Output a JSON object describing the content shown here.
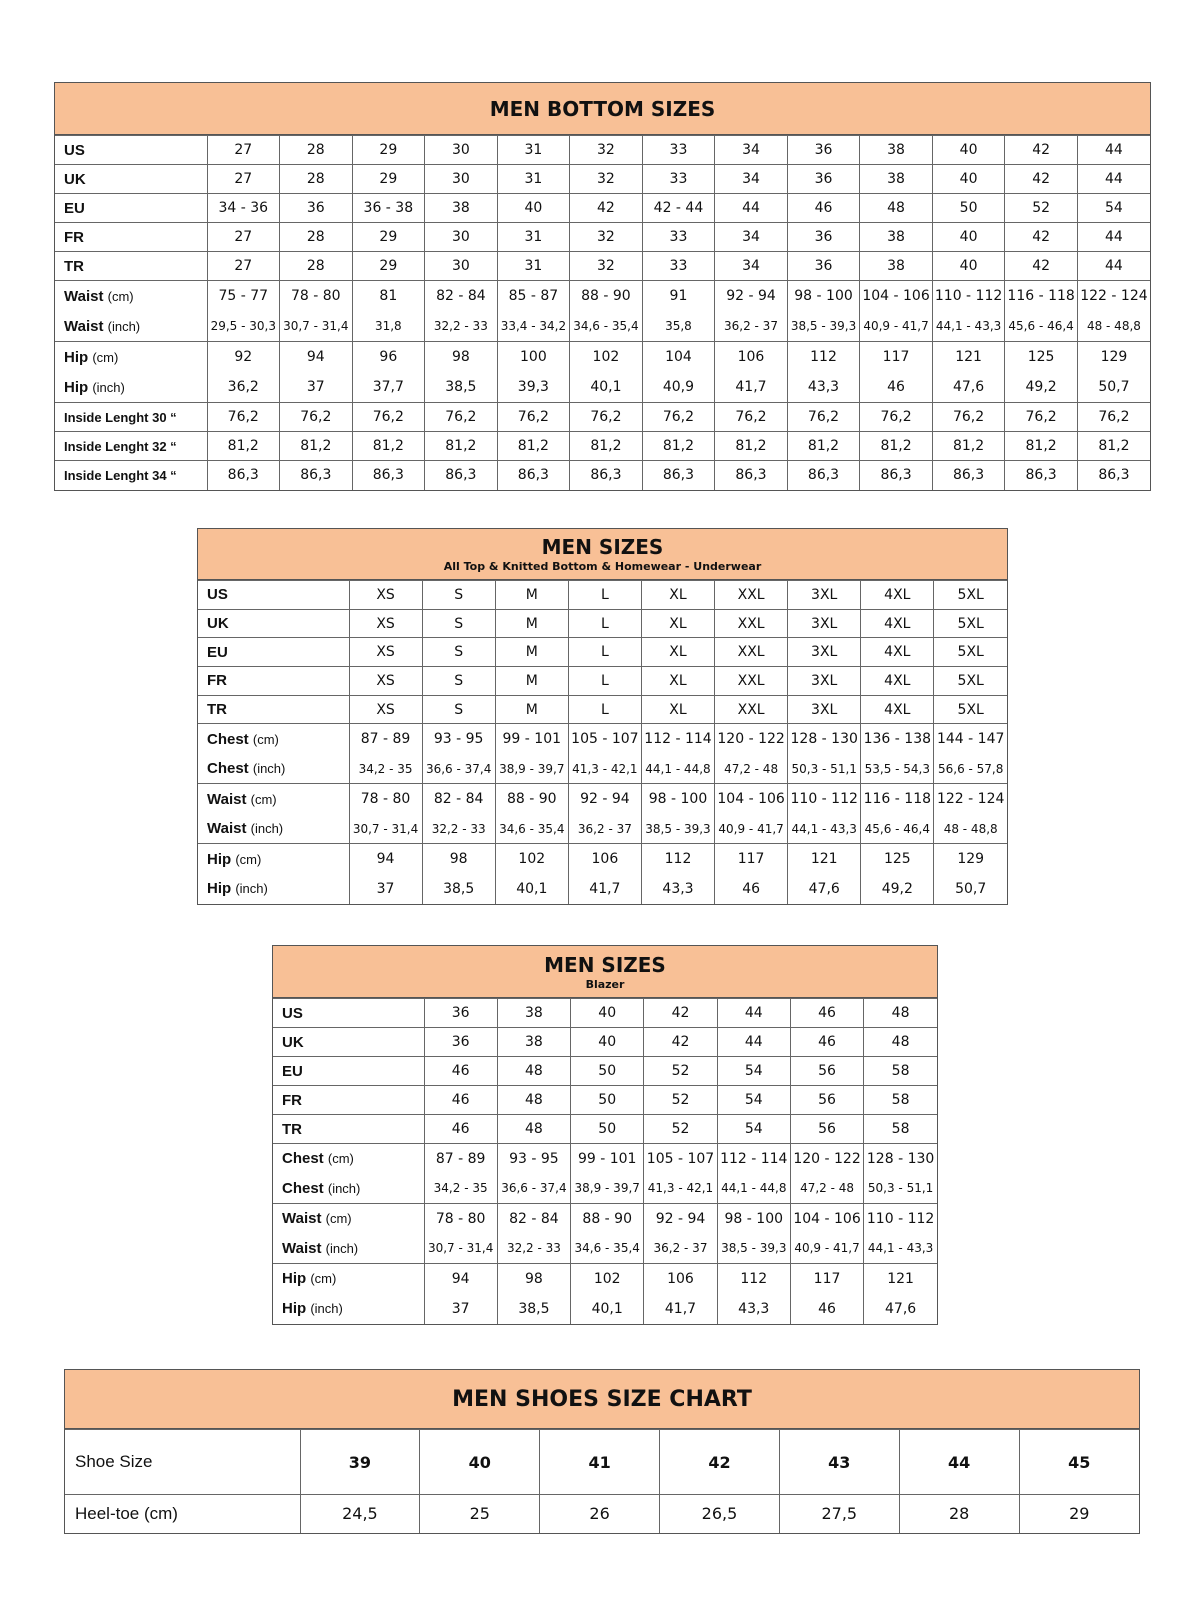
{
  "accent_color": "#f8c096",
  "tables": [
    {
      "id": "men-bottom-sizes",
      "title": "MEN BOTTOM SIZES",
      "subtitle": "",
      "rows": [
        {
          "label": "US",
          "values": [
            "27",
            "28",
            "29",
            "30",
            "31",
            "32",
            "33",
            "34",
            "36",
            "38",
            "40",
            "42",
            "44"
          ]
        },
        {
          "label": "UK",
          "values": [
            "27",
            "28",
            "29",
            "30",
            "31",
            "32",
            "33",
            "34",
            "36",
            "38",
            "40",
            "42",
            "44"
          ]
        },
        {
          "label": "EU",
          "values": [
            "34 - 36",
            "36",
            "36 - 38",
            "38",
            "40",
            "42",
            "42 - 44",
            "44",
            "46",
            "48",
            "50",
            "52",
            "54"
          ]
        },
        {
          "label": "FR",
          "values": [
            "27",
            "28",
            "29",
            "30",
            "31",
            "32",
            "33",
            "34",
            "36",
            "38",
            "40",
            "42",
            "44"
          ]
        },
        {
          "label": "TR",
          "values": [
            "27",
            "28",
            "29",
            "30",
            "31",
            "32",
            "33",
            "34",
            "36",
            "38",
            "40",
            "42",
            "44"
          ]
        },
        {
          "label": "Waist",
          "unit": "(cm)",
          "pair": "top",
          "values": [
            "75 - 77",
            "78 - 80",
            "81",
            "82 - 84",
            "85 - 87",
            "88 - 90",
            "91",
            "92 - 94",
            "98 - 100",
            "104 - 106",
            "110 - 112",
            "116 - 118",
            "122 - 124"
          ]
        },
        {
          "label": "Waist",
          "unit": "(inch)",
          "pair": "bot",
          "small": true,
          "values": [
            "29,5 - 30,3",
            "30,7 - 31,4",
            "31,8",
            "32,2 - 33",
            "33,4  - 34,2",
            "34,6 - 35,4",
            "35,8",
            "36,2 - 37",
            "38,5 - 39,3",
            "40,9 - 41,7",
            "44,1 - 43,3",
            "45,6 - 46,4",
            "48 - 48,8"
          ]
        },
        {
          "label": "Hip",
          "unit": "(cm)",
          "pair": "top",
          "values": [
            "92",
            "94",
            "96",
            "98",
            "100",
            "102",
            "104",
            "106",
            "112",
            "117",
            "121",
            "125",
            "129"
          ]
        },
        {
          "label": "Hip",
          "unit": "(inch)",
          "pair": "bot",
          "values": [
            "36,2",
            "37",
            "37,7",
            "38,5",
            "39,3",
            "40,1",
            "40,9",
            "41,7",
            "43,3",
            "46",
            "47,6",
            "49,2",
            "50,7"
          ]
        },
        {
          "label": "Inside Lenght 30 “",
          "smalllabel": true,
          "group": true,
          "values": [
            "76,2",
            "76,2",
            "76,2",
            "76,2",
            "76,2",
            "76,2",
            "76,2",
            "76,2",
            "76,2",
            "76,2",
            "76,2",
            "76,2",
            "76,2"
          ]
        },
        {
          "label": "Inside Lenght 32 “",
          "smalllabel": true,
          "values": [
            "81,2",
            "81,2",
            "81,2",
            "81,2",
            "81,2",
            "81,2",
            "81,2",
            "81,2",
            "81,2",
            "81,2",
            "81,2",
            "81,2",
            "81,2"
          ]
        },
        {
          "label": "Inside Lenght 34 “",
          "smalllabel": true,
          "values": [
            "86,3",
            "86,3",
            "86,3",
            "86,3",
            "86,3",
            "86,3",
            "86,3",
            "86,3",
            "86,3",
            "86,3",
            "86,3",
            "86,3",
            "86,3"
          ]
        }
      ]
    },
    {
      "id": "men-sizes-top",
      "title": "MEN SIZES",
      "subtitle": "All Top & Knitted Bottom & Homewear - Underwear",
      "rows": [
        {
          "label": "US",
          "values": [
            "XS",
            "S",
            "M",
            "L",
            "XL",
            "XXL",
            "3XL",
            "4XL",
            "5XL"
          ]
        },
        {
          "label": "UK",
          "values": [
            "XS",
            "S",
            "M",
            "L",
            "XL",
            "XXL",
            "3XL",
            "4XL",
            "5XL"
          ]
        },
        {
          "label": "EU",
          "values": [
            "XS",
            "S",
            "M",
            "L",
            "XL",
            "XXL",
            "3XL",
            "4XL",
            "5XL"
          ]
        },
        {
          "label": "FR",
          "values": [
            "XS",
            "S",
            "M",
            "L",
            "XL",
            "XXL",
            "3XL",
            "4XL",
            "5XL"
          ]
        },
        {
          "label": "TR",
          "values": [
            "XS",
            "S",
            "M",
            "L",
            "XL",
            "XXL",
            "3XL",
            "4XL",
            "5XL"
          ]
        },
        {
          "label": "Chest",
          "unit": "(cm)",
          "pair": "top",
          "values": [
            "87 - 89",
            "93 - 95",
            "99 - 101",
            "105 - 107",
            "112 - 114",
            "120 - 122",
            "128 - 130",
            "136 - 138",
            "144 - 147"
          ]
        },
        {
          "label": "Chest",
          "unit": "(inch)",
          "pair": "bot",
          "small": true,
          "values": [
            "34,2 - 35",
            "36,6 - 37,4",
            "38,9 - 39,7",
            "41,3 - 42,1",
            "44,1 - 44,8",
            "47,2 - 48",
            "50,3 - 51,1",
            "53,5 - 54,3",
            "56,6 - 57,8"
          ]
        },
        {
          "label": "Waist",
          "unit": "(cm)",
          "pair": "top",
          "values": [
            "78 - 80",
            "82 - 84",
            "88 - 90",
            "92 - 94",
            "98 - 100",
            "104 - 106",
            "110 - 112",
            "116 - 118",
            "122 - 124"
          ]
        },
        {
          "label": "Waist",
          "unit": "(inch)",
          "pair": "bot",
          "small": true,
          "values": [
            "30,7 - 31,4",
            "32,2 - 33",
            "34,6 - 35,4",
            "36,2 - 37",
            "38,5 - 39,3",
            "40,9 - 41,7",
            "44,1 - 43,3",
            "45,6 - 46,4",
            "48 - 48,8"
          ]
        },
        {
          "label": "Hip",
          "unit": "(cm)",
          "pair": "top",
          "values": [
            "94",
            "98",
            "102",
            "106",
            "112",
            "117",
            "121",
            "125",
            "129"
          ]
        },
        {
          "label": "Hip",
          "unit": "(inch)",
          "pair": "bot",
          "values": [
            "37",
            "38,5",
            "40,1",
            "41,7",
            "43,3",
            "46",
            "47,6",
            "49,2",
            "50,7"
          ]
        }
      ]
    },
    {
      "id": "men-sizes-blazer",
      "title": "MEN SIZES",
      "subtitle": "Blazer",
      "rows": [
        {
          "label": "US",
          "values": [
            "36",
            "38",
            "40",
            "42",
            "44",
            "46",
            "48"
          ]
        },
        {
          "label": "UK",
          "values": [
            "36",
            "38",
            "40",
            "42",
            "44",
            "46",
            "48"
          ]
        },
        {
          "label": "EU",
          "values": [
            "46",
            "48",
            "50",
            "52",
            "54",
            "56",
            "58"
          ]
        },
        {
          "label": "FR",
          "values": [
            "46",
            "48",
            "50",
            "52",
            "54",
            "56",
            "58"
          ]
        },
        {
          "label": "TR",
          "values": [
            "46",
            "48",
            "50",
            "52",
            "54",
            "56",
            "58"
          ]
        },
        {
          "label": "Chest",
          "unit": "(cm)",
          "pair": "top",
          "values": [
            "87 - 89",
            "93 - 95",
            "99 - 101",
            "105 - 107",
            "112 - 114",
            "120 - 122",
            "128 - 130"
          ]
        },
        {
          "label": "Chest",
          "unit": "(inch)",
          "pair": "bot",
          "small": true,
          "values": [
            "34,2 - 35",
            "36,6 - 37,4",
            "38,9 - 39,7",
            "41,3 - 42,1",
            "44,1 - 44,8",
            "47,2 - 48",
            "50,3 - 51,1"
          ]
        },
        {
          "label": "Waist",
          "unit": "(cm)",
          "pair": "top",
          "values": [
            "78 - 80",
            "82 - 84",
            "88 - 90",
            "92 - 94",
            "98 - 100",
            "104 - 106",
            "110 - 112"
          ]
        },
        {
          "label": "Waist",
          "unit": "(inch)",
          "pair": "bot",
          "small": true,
          "values": [
            "30,7 - 31,4",
            "32,2 - 33",
            "34,6 - 35,4",
            "36,2 - 37",
            "38,5 - 39,3",
            "40,9 - 41,7",
            "44,1 - 43,3"
          ]
        },
        {
          "label": "Hip",
          "unit": "(cm)",
          "pair": "top",
          "values": [
            "94",
            "98",
            "102",
            "106",
            "112",
            "117",
            "121"
          ]
        },
        {
          "label": "Hip",
          "unit": "(inch)",
          "pair": "bot",
          "values": [
            "37",
            "38,5",
            "40,1",
            "41,7",
            "43,3",
            "46",
            "47,6"
          ]
        }
      ]
    },
    {
      "id": "men-shoes-size-chart",
      "title": "MEN SHOES SIZE CHART",
      "subtitle": "",
      "rows": [
        {
          "label": "Shoe Size",
          "bold": true,
          "values": [
            "39",
            "40",
            "41",
            "42",
            "43",
            "44",
            "45"
          ]
        },
        {
          "label": "Heel-toe (cm)",
          "values": [
            "24,5",
            "25",
            "26",
            "26,5",
            "27,5",
            "28",
            "29"
          ]
        }
      ]
    }
  ]
}
